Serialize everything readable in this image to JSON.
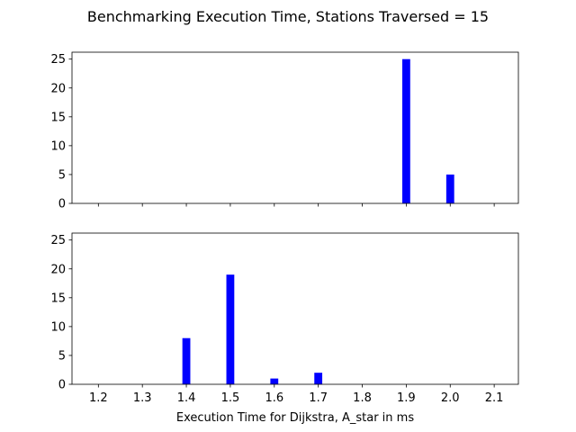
{
  "chart_data": [
    {
      "type": "bar",
      "suptitle": "Benchmarking Execution Time, Stations Traversed = 15",
      "xlabel": "",
      "ylabel": "",
      "x": [
        1.9,
        2.0
      ],
      "values": [
        25,
        5
      ],
      "bar_width": 0.018,
      "color": "#0000ff",
      "xlim": [
        1.14,
        2.155
      ],
      "ylim": [
        0,
        26.2
      ],
      "xticks": [
        "1.2",
        "1.3",
        "1.4",
        "1.5",
        "1.6",
        "1.7",
        "1.8",
        "1.9",
        "2.0",
        "2.1"
      ],
      "show_xtick_labels": false,
      "yticks": [
        "0",
        "5",
        "10",
        "15",
        "20",
        "25"
      ],
      "grid": false
    },
    {
      "type": "bar",
      "xlabel": "Execution Time for Dijkstra, A_star in ms",
      "ylabel": "",
      "x": [
        1.4,
        1.5,
        1.6,
        1.7
      ],
      "values": [
        8,
        19,
        1,
        2
      ],
      "bar_width": 0.018,
      "color": "#0000ff",
      "xlim": [
        1.14,
        2.155
      ],
      "ylim": [
        0,
        26.2
      ],
      "xticks": [
        "1.2",
        "1.3",
        "1.4",
        "1.5",
        "1.6",
        "1.7",
        "1.8",
        "1.9",
        "2.0",
        "2.1"
      ],
      "show_xtick_labels": true,
      "yticks": [
        "0",
        "5",
        "10",
        "15",
        "20",
        "25"
      ],
      "grid": false
    }
  ]
}
